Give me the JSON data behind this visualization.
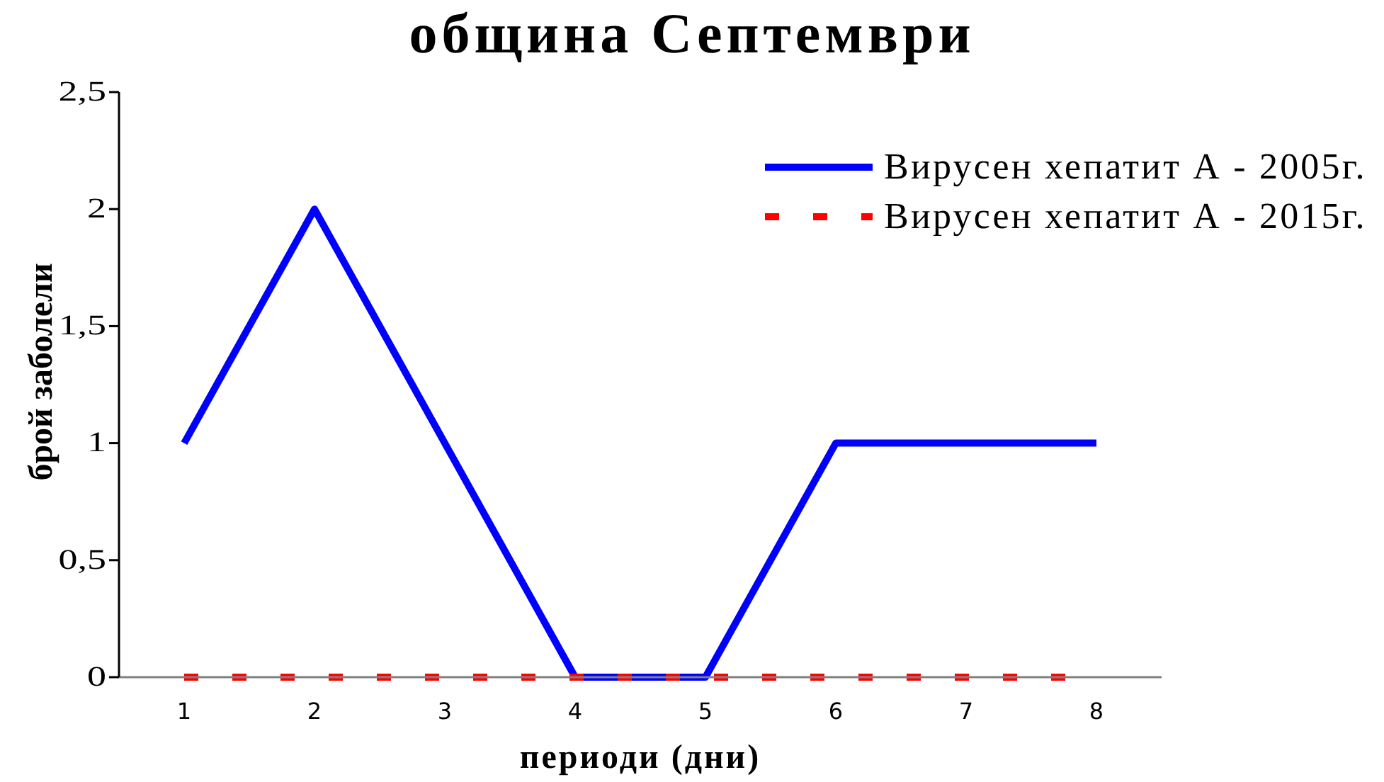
{
  "chart_data": {
    "type": "line",
    "title": "община Септември",
    "xlabel": "периоди (дни)",
    "ylabel": "брой заболели",
    "categories": [
      "1",
      "2",
      "3",
      "4",
      "5",
      "6",
      "7",
      "8"
    ],
    "series": [
      {
        "name": "Вирусен хепатит А - 2005г.",
        "color": "#0000ff",
        "line_style": "solid",
        "values": [
          1,
          2,
          1,
          0,
          0,
          1,
          1,
          1
        ]
      },
      {
        "name": "Вирусен хепатит А - 2015г.",
        "color": "#ff0000",
        "line_style": "dashed",
        "values": [
          0,
          0,
          0,
          0,
          0,
          0,
          0,
          0
        ]
      }
    ],
    "ylim": [
      0,
      2.5
    ],
    "yticks": [
      0,
      {
        "value": 0.5,
        "label": "0,5"
      },
      1,
      {
        "value": 1.5,
        "label": "1,5"
      },
      2,
      {
        "value": 2.5,
        "label": "2,5"
      }
    ],
    "legend": "top right",
    "marker": "none"
  }
}
